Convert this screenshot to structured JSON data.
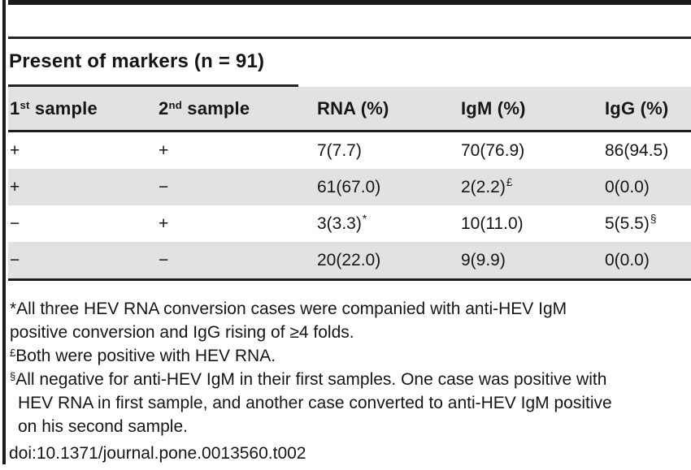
{
  "colors": {
    "stripe_gray": "#e2e2e2",
    "rule_black": "#1d1d1b",
    "text": "#161616",
    "background": "#ffffff"
  },
  "table": {
    "group_header": "Present of markers (n = 91)",
    "columns": [
      {
        "base": "1",
        "sup": "st",
        "rest": " sample"
      },
      {
        "base": "2",
        "sup": "nd",
        "rest": " sample"
      },
      {
        "base": "RNA (%)",
        "sup": "",
        "rest": ""
      },
      {
        "base": "IgM (%)",
        "sup": "",
        "rest": ""
      },
      {
        "base": "IgG (%)",
        "sup": "",
        "rest": ""
      }
    ],
    "rows": [
      {
        "sample1": "+",
        "sample2": "+",
        "rna": "7(7.7)",
        "rna_sup": "",
        "igm": "70(76.9)",
        "igm_sup": "",
        "igg": "86(94.5)",
        "igg_sup": ""
      },
      {
        "sample1": "+",
        "sample2": "−",
        "rna": "61(67.0)",
        "rna_sup": "",
        "igm": "2(2.2)",
        "igm_sup": "£",
        "igg": "0(0.0)",
        "igg_sup": ""
      },
      {
        "sample1": "−",
        "sample2": "+",
        "rna": "3(3.3)",
        "rna_sup": "*",
        "igm": "10(11.0)",
        "igm_sup": "",
        "igg": "5(5.5)",
        "igg_sup": "§"
      },
      {
        "sample1": "−",
        "sample2": "−",
        "rna": "20(22.0)",
        "rna_sup": "",
        "igm": "9(9.9)",
        "igm_sup": "",
        "igg": "0(0.0)",
        "igg_sup": ""
      }
    ]
  },
  "footnotes": {
    "lines": [
      {
        "sup": "",
        "text": "*All three HEV RNA conversion cases were companied with anti-HEV IgM"
      },
      {
        "sup": "",
        "text": "positive conversion and IgG rising of ≥4 folds."
      },
      {
        "sup": "£",
        "text": "Both were positive with HEV RNA."
      },
      {
        "sup": "§",
        "text": "All negative for anti-HEV IgM in their first samples. One case was positive with"
      },
      {
        "sup": "",
        "text": "HEV RNA in first sample, and another case converted to anti-HEV IgM positive"
      },
      {
        "sup": "",
        "text": "on his second sample."
      }
    ],
    "doi": "doi:10.1371/journal.pone.0013560.t002"
  }
}
